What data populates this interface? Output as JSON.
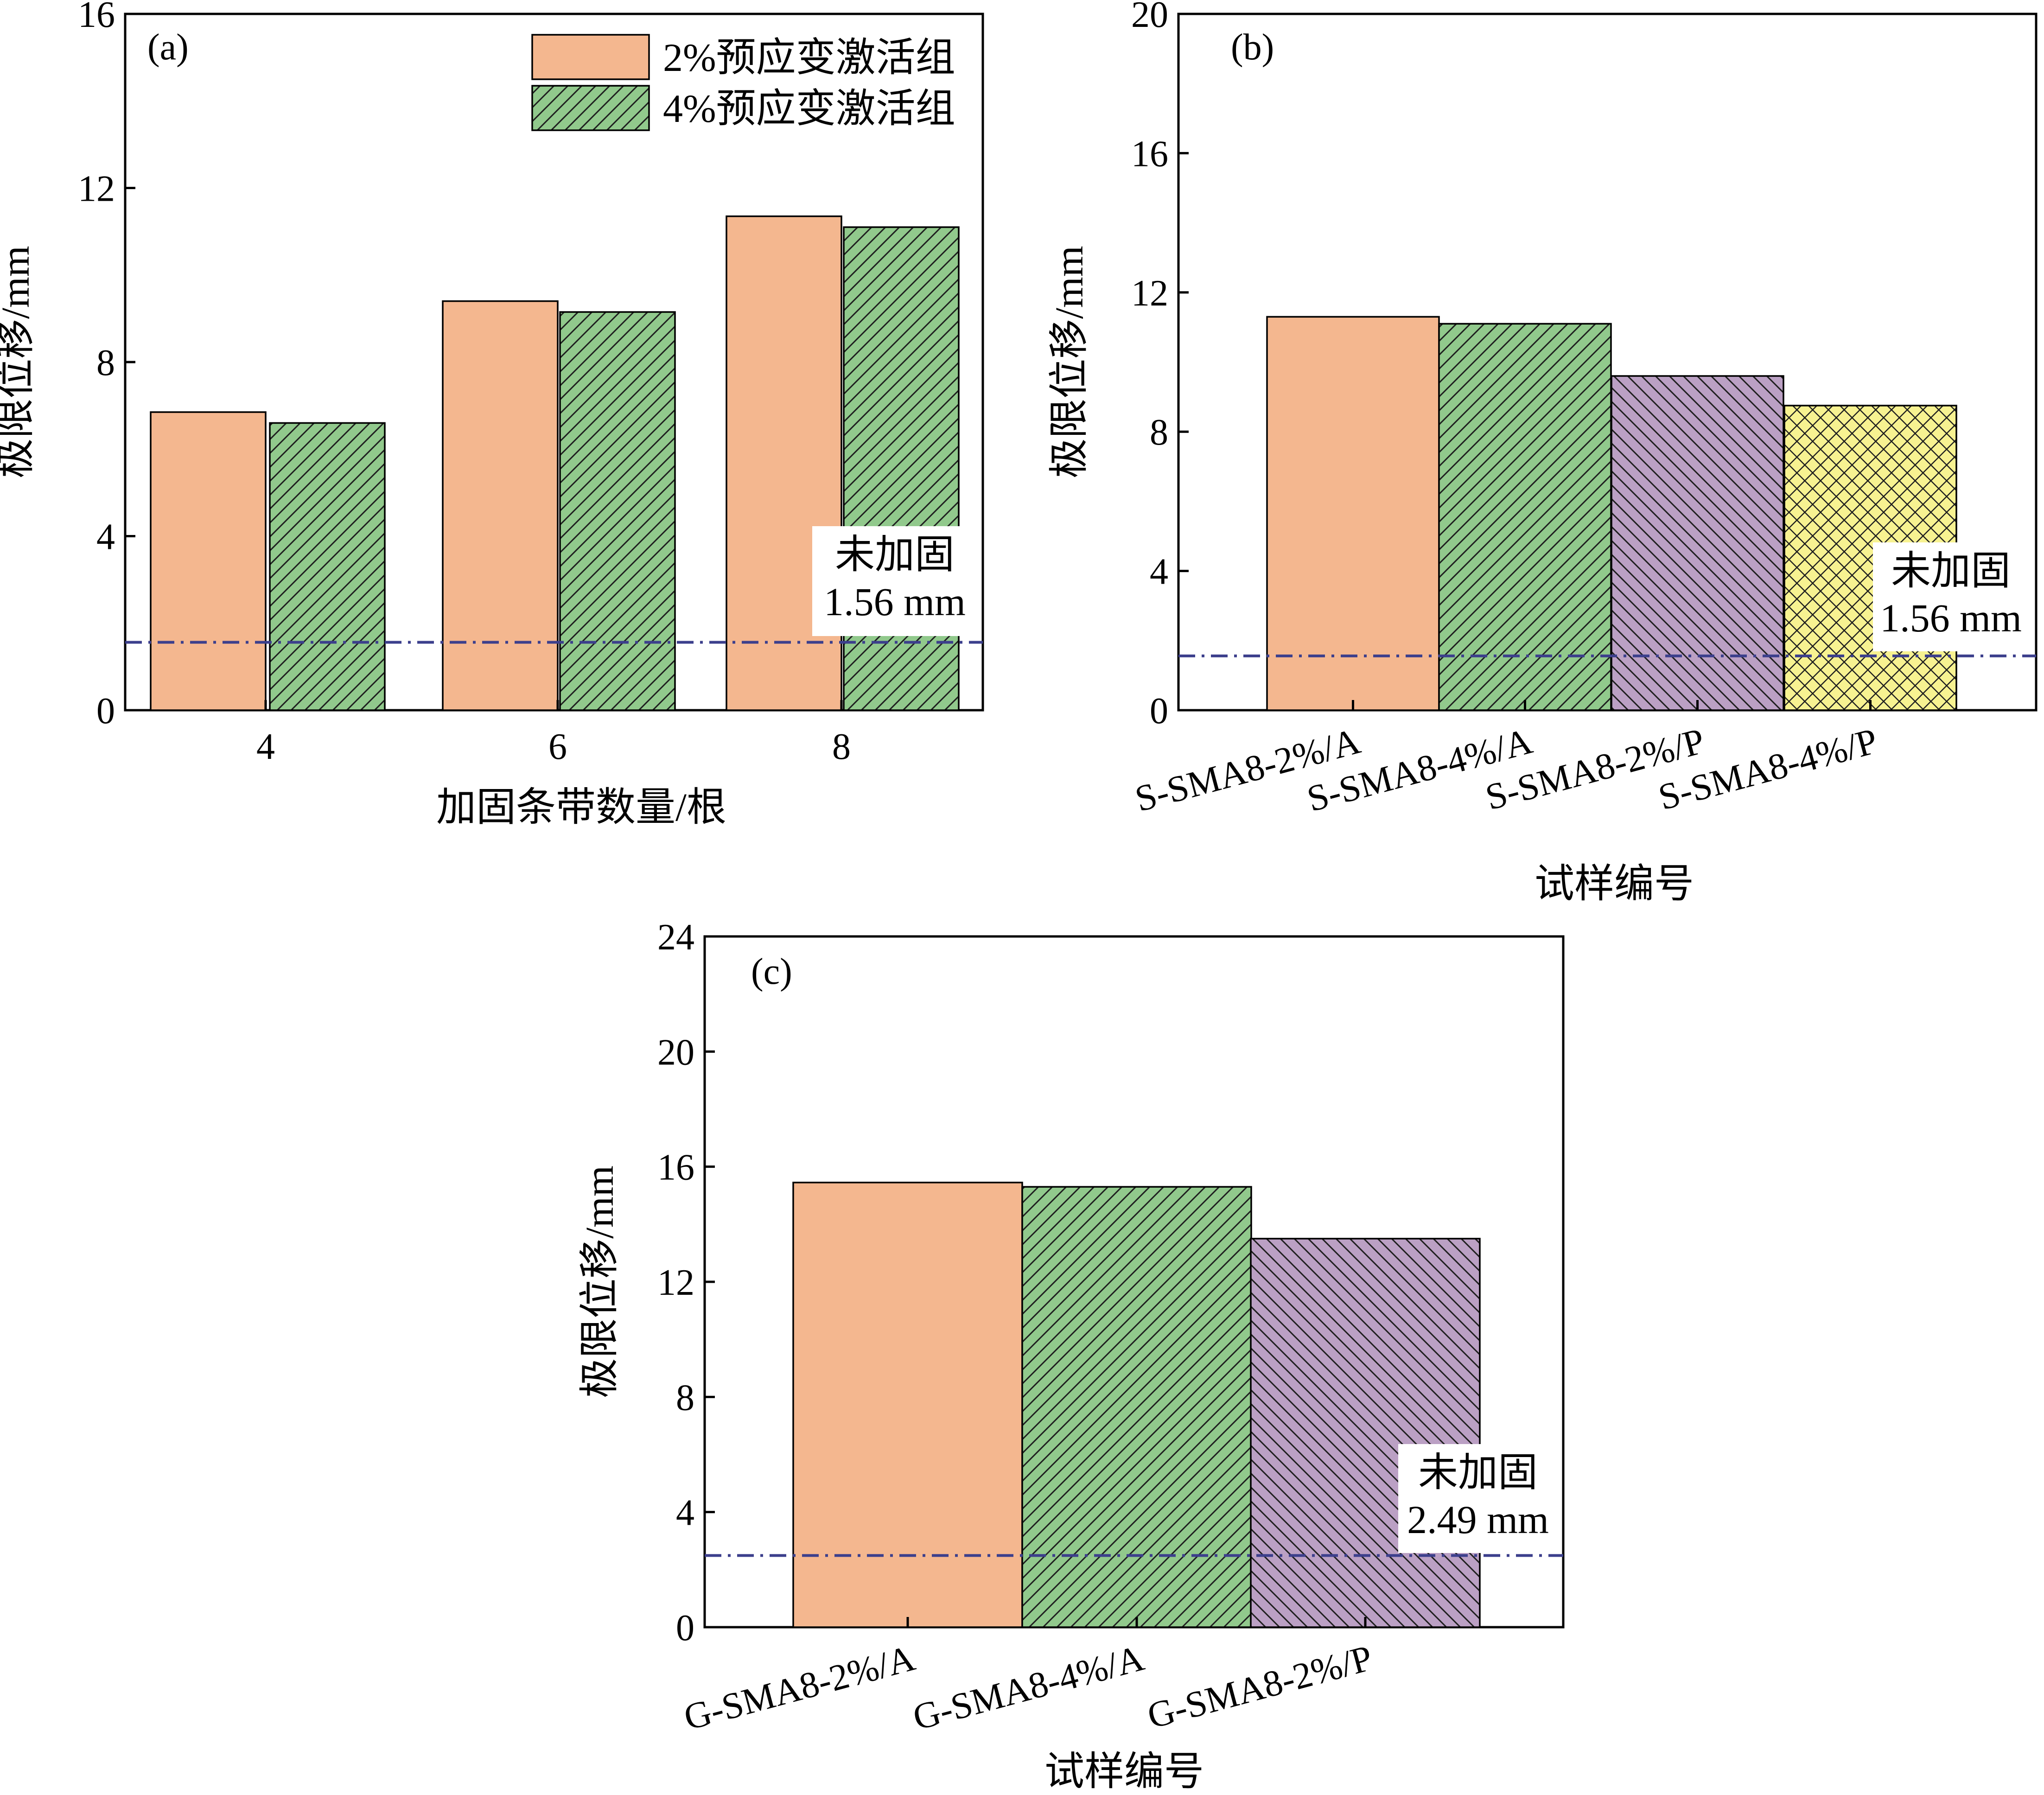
{
  "colors": {
    "orange": "#f4b78f",
    "green": "#91c98c",
    "purple": "#bba0c4",
    "yellow": "#f7f291",
    "hatch": "#1f1f1f",
    "baseline": "#3c3f8c"
  },
  "chart_data": [
    {
      "panel_label": "(a)",
      "type": "bar",
      "xlabel": "加固条带数量/根",
      "ylabel": "极限位移/mm",
      "ylim": [
        0,
        16
      ],
      "yticks": [
        0,
        4,
        8,
        12,
        16
      ],
      "categories": [
        "4",
        "6",
        "8"
      ],
      "series": [
        {
          "name": "2%预应变激活组",
          "values": [
            6.85,
            9.4,
            11.35
          ],
          "color": "orange",
          "pattern": "none"
        },
        {
          "name": "4%预应变激活组",
          "values": [
            6.6,
            9.15,
            11.1
          ],
          "color": "green",
          "pattern": "diag"
        }
      ],
      "legend": "top-right",
      "reference": {
        "value": 1.56,
        "label": "未加固",
        "value_label": "1.56 mm"
      },
      "grid": false
    },
    {
      "panel_label": "(b)",
      "type": "bar",
      "xlabel": "试样编号",
      "ylabel": "极限位移/mm",
      "ylim": [
        0,
        20
      ],
      "yticks": [
        0,
        4,
        8,
        12,
        16,
        20
      ],
      "categories": [
        "S-SMA8-2%/A",
        "S-SMA8-4%/A",
        "S-SMA8-2%/P",
        "S-SMA8-4%/P"
      ],
      "series": [
        {
          "values": [
            11.3,
            11.1,
            9.6,
            8.75
          ],
          "colors": [
            "orange",
            "green",
            "purple",
            "yellow"
          ],
          "patterns": [
            "none",
            "diag",
            "back",
            "cross"
          ]
        }
      ],
      "reference": {
        "value": 1.56,
        "label": "未加固",
        "value_label": "1.56 mm"
      },
      "grid": false
    },
    {
      "panel_label": "(c)",
      "type": "bar",
      "xlabel": "试样编号",
      "ylabel": "极限位移/mm",
      "ylim": [
        0,
        24
      ],
      "yticks": [
        0,
        4,
        8,
        12,
        16,
        20,
        24
      ],
      "categories": [
        "G-SMA8-2%/A",
        "G-SMA8-4%/A",
        "G-SMA8-2%/P"
      ],
      "series": [
        {
          "values": [
            15.45,
            15.3,
            13.5
          ],
          "colors": [
            "orange",
            "green",
            "purple"
          ],
          "patterns": [
            "none",
            "diag",
            "back"
          ]
        }
      ],
      "reference": {
        "value": 2.49,
        "label": "未加固",
        "value_label": "2.49 mm"
      },
      "grid": false
    }
  ]
}
